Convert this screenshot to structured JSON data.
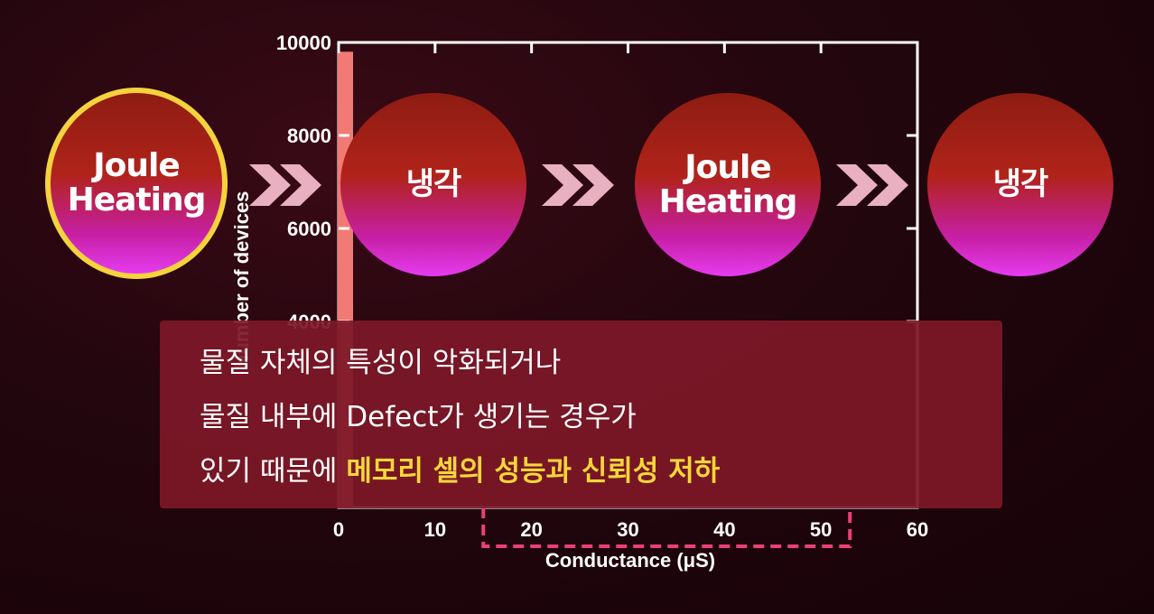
{
  "chart_data": {
    "type": "bar",
    "xlabel": "Conductance (μS)",
    "ylabel": "Number of devices",
    "xlim": [
      0,
      60
    ],
    "ylim": [
      0,
      10000
    ],
    "x_ticks": [
      "0",
      "10",
      "20",
      "30",
      "40",
      "50",
      "60"
    ],
    "y_ticks": [
      "4000",
      "6000",
      "8000",
      "10000"
    ],
    "bars": [
      {
        "x": 0.7,
        "value": 9800,
        "width": 1.6
      }
    ],
    "bar_color": "#f27a74",
    "highlight_range": [
      15,
      53
    ],
    "highlight_color": "#e8407a"
  },
  "process": [
    {
      "lines": [
        "Joule",
        "Heating"
      ],
      "active": true
    },
    {
      "lines": [
        "냉각"
      ],
      "active": false
    },
    {
      "lines": [
        "Joule",
        "Heating"
      ],
      "active": false
    },
    {
      "lines": [
        "냉각"
      ],
      "active": false
    }
  ],
  "colors": {
    "arrow": "#e8b0c0",
    "active_ring": "#f6d23c"
  },
  "caption": {
    "line1": "물질 자체의 특성이 악화되거나",
    "line2": "물질 내부에 Defect가 생기는 경우가",
    "line3_plain": "있기 때문에 ",
    "line3_highlight": "메모리 셀의 성능과 신뢰성 저하"
  }
}
